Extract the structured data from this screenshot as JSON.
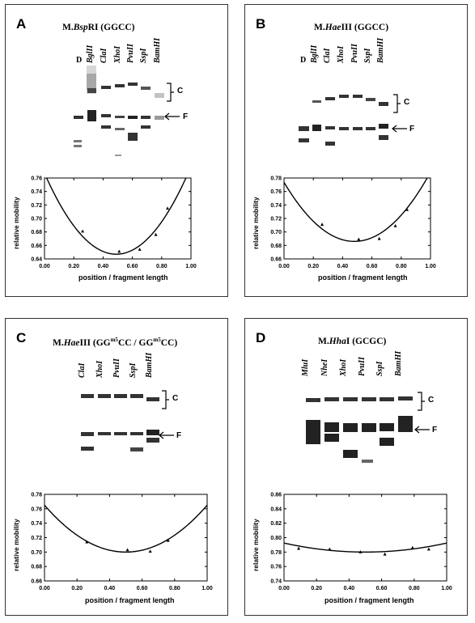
{
  "panels": [
    {
      "letter": "A",
      "title_enzyme_prefix": "M.",
      "title_enzyme_italic": "Bsp",
      "title_enzyme_suffix": "RI",
      "title_site": "(GGCC)",
      "d_label": "D",
      "lanes": [
        "BglII",
        "ClaI",
        "XhoI",
        "PvuII",
        "SspI",
        "BamHI"
      ],
      "complex_label": "C",
      "free_label": "F",
      "chart_data": {
        "type": "scatter",
        "xlabel": "position / fragment length",
        "ylabel": "relative mobility",
        "xlim": [
          0.0,
          1.0
        ],
        "ylim": [
          0.64,
          0.76
        ],
        "xticks": [
          "0.00",
          "0.20",
          "0.40",
          "0.60",
          "0.80",
          "1.00"
        ],
        "yticks": [
          "0.64",
          "0.66",
          "0.68",
          "0.70",
          "0.72",
          "0.74",
          "0.76"
        ],
        "points": [
          [
            0.26,
            0.681
          ],
          [
            0.51,
            0.651
          ],
          [
            0.65,
            0.654
          ],
          [
            0.76,
            0.676
          ],
          [
            0.84,
            0.715
          ]
        ],
        "curve": {
          "vertex_x": 0.49,
          "vertex_y": 0.647,
          "a": 0.5
        }
      }
    },
    {
      "letter": "B",
      "title_enzyme_prefix": "M.",
      "title_enzyme_italic": "Hae",
      "title_enzyme_suffix": "III",
      "title_site": "(GGCC)",
      "d_label": "D",
      "lanes": [
        "BglII",
        "ClaI",
        "XhoI",
        "PvuII",
        "SspI",
        "BamHI"
      ],
      "complex_label": "C",
      "free_label": "F",
      "chart_data": {
        "type": "scatter",
        "xlabel": "position / fragment length",
        "ylabel": "relative mobility",
        "xlim": [
          0.0,
          1.0
        ],
        "ylim": [
          0.66,
          0.78
        ],
        "xticks": [
          "0.00",
          "0.20",
          "0.40",
          "0.60",
          "0.80",
          "1.00"
        ],
        "yticks": [
          "0.66",
          "0.68",
          "0.70",
          "0.72",
          "0.74",
          "0.76",
          "0.78"
        ],
        "points": [
          [
            0.26,
            0.711
          ],
          [
            0.51,
            0.689
          ],
          [
            0.65,
            0.69
          ],
          [
            0.76,
            0.709
          ],
          [
            0.84,
            0.733
          ]
        ],
        "curve": {
          "vertex_x": 0.48,
          "vertex_y": 0.686,
          "a": 0.38
        }
      }
    },
    {
      "letter": "C",
      "title_enzyme_prefix": "M.",
      "title_enzyme_italic": "Hae",
      "title_enzyme_suffix": "III",
      "title_site_a": "(GG",
      "title_site_sup_a": "m5",
      "title_site_b": "CC / GG",
      "title_site_sup_b": "m5",
      "title_site_c": "CC)",
      "lanes": [
        "ClaI",
        "XhoI",
        "PvuII",
        "SspI",
        "BamHI"
      ],
      "complex_label": "C",
      "free_label": "F",
      "chart_data": {
        "type": "scatter",
        "xlabel": "position / fragment length",
        "ylabel": "relative mobility",
        "xlim": [
          0.0,
          1.0
        ],
        "ylim": [
          0.66,
          0.78
        ],
        "xticks": [
          "0.00",
          "0.20",
          "0.40",
          "0.60",
          "0.80",
          "1.00"
        ],
        "yticks": [
          "0.66",
          "0.68",
          "0.70",
          "0.72",
          "0.74",
          "0.76",
          "0.78"
        ],
        "points": [
          [
            0.26,
            0.714
          ],
          [
            0.51,
            0.703
          ],
          [
            0.65,
            0.701
          ],
          [
            0.76,
            0.716
          ]
        ],
        "curve": {
          "vertex_x": 0.5,
          "vertex_y": 0.7,
          "a": 0.26
        }
      }
    },
    {
      "letter": "D",
      "title_enzyme_prefix": "M.",
      "title_enzyme_italic": "Hha",
      "title_enzyme_suffix": "I",
      "title_site": "(GCGC)",
      "lanes": [
        "MluI",
        "NheI",
        "XhoI",
        "PvuII",
        "SspI",
        "BamHI"
      ],
      "complex_label": "C",
      "free_label": "F",
      "chart_data": {
        "type": "scatter",
        "xlabel": "position / fragment length",
        "ylabel": "relative mobility",
        "xlim": [
          0.0,
          1.0
        ],
        "ylim": [
          0.74,
          0.86
        ],
        "xticks": [
          "0.00",
          "0.20",
          "0.40",
          "0.60",
          "0.80",
          "1.00"
        ],
        "yticks": [
          "0.74",
          "0.76",
          "0.78",
          "0.80",
          "0.82",
          "0.84",
          "0.86"
        ],
        "points": [
          [
            0.09,
            0.785
          ],
          [
            0.28,
            0.784
          ],
          [
            0.47,
            0.78
          ],
          [
            0.62,
            0.777
          ],
          [
            0.79,
            0.786
          ],
          [
            0.89,
            0.784
          ]
        ],
        "curve": {
          "vertex_x": 0.5,
          "vertex_y": 0.78,
          "a": 0.05
        }
      }
    }
  ]
}
